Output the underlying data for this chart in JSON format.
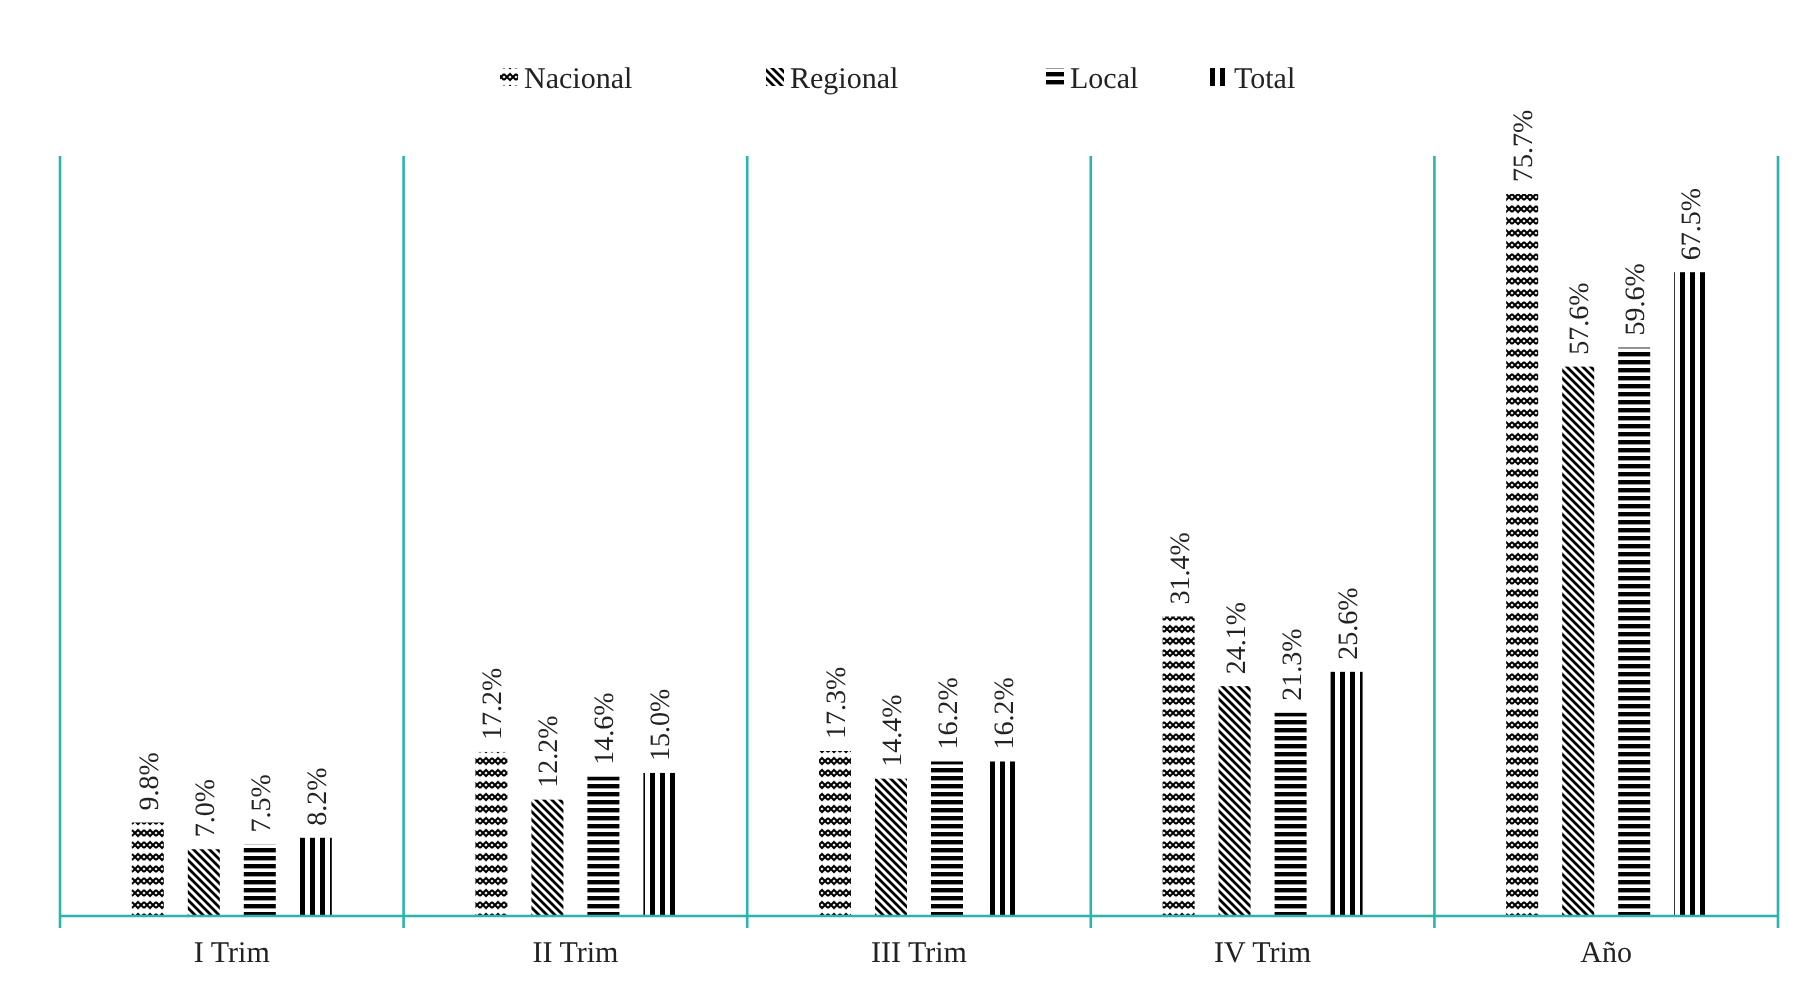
{
  "chart_data": {
    "type": "bar",
    "categories": [
      "I Trim",
      "II Trim",
      "III Trim",
      "IV Trim",
      "Año"
    ],
    "series": [
      {
        "name": "Nacional",
        "color": "#000000",
        "values": [
          9.8,
          17.2,
          17.3,
          31.4,
          75.7
        ],
        "value_labels": [
          "9.8%",
          "17.2%",
          "17.3%",
          "31.4%",
          "75.7%"
        ]
      },
      {
        "name": "Regional",
        "color": "#000000",
        "values": [
          7.0,
          12.2,
          14.4,
          24.1,
          57.6
        ],
        "value_labels": [
          "7.0%",
          "12.2%",
          "14.4%",
          "24.1%",
          "57.6%"
        ]
      },
      {
        "name": "Local",
        "color": "#000000",
        "values": [
          7.5,
          14.6,
          16.2,
          21.3,
          59.6
        ],
        "value_labels": [
          "7.5%",
          "14.6%",
          "16.2%",
          "21.3%",
          "59.6%"
        ]
      },
      {
        "name": "Total",
        "color": "#000000",
        "values": [
          8.2,
          15.0,
          16.2,
          25.6,
          67.5
        ],
        "value_labels": [
          "8.2%",
          "15.0%",
          "16.2%",
          "25.6%",
          "67.5%"
        ]
      }
    ],
    "legend": "top"
  }
}
